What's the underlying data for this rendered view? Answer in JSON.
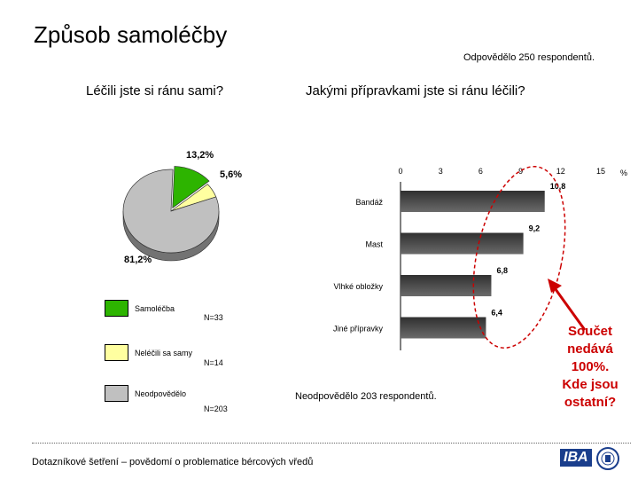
{
  "header": {
    "title": "Způsob samoléčby",
    "respondents": "Odpovědělo 250 respondentů."
  },
  "questions": {
    "q1": "Léčili jste si ránu sami?",
    "q2": "Jakými přípravkami jste si ránu léčili?"
  },
  "legend": [
    {
      "label": "Samoléčba",
      "n": "N=33",
      "color": "#2db400"
    },
    {
      "label": "Neléčili sa samy",
      "n": "N=14",
      "color": "#ffffa0"
    },
    {
      "label": "Neodpovědělo",
      "n": "N=203",
      "color": "#c0c0c0"
    }
  ],
  "note": "Neodpovědělo 203 respondentů.",
  "annotation": [
    "Součet",
    "nedává",
    "100%.",
    "Kde jsou",
    "ostatní?"
  ],
  "footer": "Dotazníkové šetření – povědomí o problematice bércových vředů",
  "logo": {
    "text": "IBA"
  },
  "colors": {
    "accent_red": "#cc0000",
    "bar_dark": "#404040",
    "bar_light": "#707070"
  },
  "chart_data": [
    {
      "type": "pie",
      "categories": [
        "Samoléčba",
        "Neléčili sa samy",
        "Neodpovědělo"
      ],
      "values": [
        13.2,
        5.6,
        81.2
      ],
      "value_labels": [
        "13,2%",
        "5,6%",
        "81,2%"
      ],
      "colors": [
        "#2db400",
        "#ffffa0",
        "#c0c0c0"
      ]
    },
    {
      "type": "bar",
      "orientation": "horizontal",
      "categories": [
        "Bandáž",
        "Mast",
        "Vlhké obložky",
        "Jiné přípravky"
      ],
      "values": [
        10.8,
        9.2,
        6.8,
        6.4
      ],
      "value_labels": [
        "10,8",
        "9,2",
        "6,8",
        "6,4"
      ],
      "xlim": [
        0,
        15
      ],
      "ticks": [
        "0",
        "3",
        "6",
        "9",
        "12",
        "15"
      ],
      "unit": "%"
    }
  ]
}
